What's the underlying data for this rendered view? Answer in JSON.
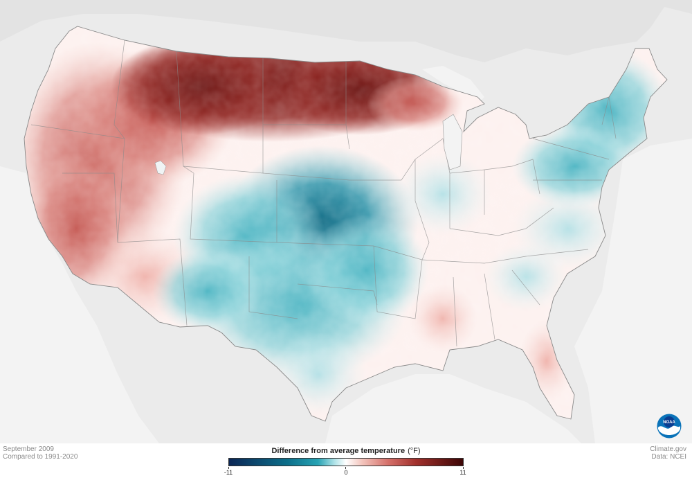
{
  "footer": {
    "date_label": "September 2009",
    "comparison_label": "Compared to 1991-2020",
    "credit_site": "Climate.gov",
    "credit_data": "Data: NCEI"
  },
  "legend": {
    "title": "Difference from average temperature",
    "unit": "(°F)",
    "min_label": "-11",
    "mid_label": "0",
    "max_label": "11",
    "min_value": -11,
    "max_value": 11,
    "colors": {
      "cold_extreme": "#0b2655",
      "cold_strong": "#0c6f8a",
      "cold_mid": "#27a3b4",
      "cool_light": "#aee2e7",
      "neutral": "#ffffff",
      "warm_light": "#f3c4bc",
      "warm_mid": "#d5706a",
      "warm_strong": "#a1302c",
      "hot_extreme": "#3d0606"
    }
  },
  "logo": {
    "text": "NOAA",
    "icon": "noaa-logo-icon",
    "color_outer": "#0a73b9",
    "color_inner": "#0b3d91"
  },
  "map": {
    "region": "Contiguous United States",
    "background_land_color": "#e8e8e8",
    "water_color": "#f4f4f4",
    "anomalies": [
      {
        "region": "Northern Plains / Montana / North Dakota",
        "sign": "warm",
        "strength": "strong"
      },
      {
        "region": "Minnesota / Northern Wisconsin",
        "sign": "warm",
        "strength": "strong"
      },
      {
        "region": "Pacific Northwest / Great Basin / California",
        "sign": "warm",
        "strength": "moderate"
      },
      {
        "region": "Central Plains / Kansas / Nebraska",
        "sign": "cold",
        "strength": "strong"
      },
      {
        "region": "Texas / Oklahoma / New Mexico",
        "sign": "cold",
        "strength": "moderate"
      },
      {
        "region": "New England / New York",
        "sign": "cold",
        "strength": "moderate"
      },
      {
        "region": "Mid-Atlantic / Appalachians",
        "sign": "cold",
        "strength": "light"
      },
      {
        "region": "Southeast / Florida",
        "sign": "warm",
        "strength": "light"
      }
    ]
  }
}
